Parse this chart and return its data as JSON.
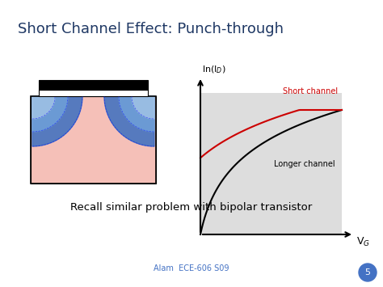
{
  "title": "Short Channel Effect: Punch-through",
  "title_color": "#1F3864",
  "title_fontsize": 13,
  "bg_color": "#F5F5F5",
  "slide_bg": "#FFFFFF",
  "ylabel": "ln(I_D)",
  "xlabel": "V_G",
  "short_channel_label": "Short channel",
  "longer_channel_label": "Longer channel",
  "footer": "Alam  ECE-606 S09",
  "slide_number": "5",
  "recall_text": "Recall similar problem with bipolar transistor",
  "graph_bg": "#DDDDDD",
  "short_channel_color": "#CC0000",
  "longer_channel_color": "#000000"
}
